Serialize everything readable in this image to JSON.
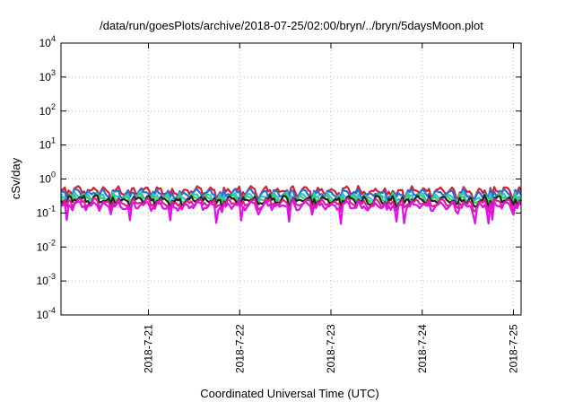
{
  "chart_data": {
    "type": "line",
    "title": "/data/run/goesPlots/archive/2018-07-25/02:00/bryn/../bryn/5daysMoon.plot",
    "xlabel": "Coordinated Universal Time (UTC)",
    "ylabel": "cSv/day",
    "yscale": "log",
    "ylim": [
      0.0001,
      10000
    ],
    "y_ticks": [
      {
        "base": "10",
        "exp": "-4",
        "value": 0.0001
      },
      {
        "base": "10",
        "exp": "-3",
        "value": 0.001
      },
      {
        "base": "10",
        "exp": "-2",
        "value": 0.01
      },
      {
        "base": "10",
        "exp": "-1",
        "value": 0.1
      },
      {
        "base": "10",
        "exp": "0",
        "value": 1
      },
      {
        "base": "10",
        "exp": "1",
        "value": 10
      },
      {
        "base": "10",
        "exp": "2",
        "value": 100
      },
      {
        "base": "10",
        "exp": "3",
        "value": 1000
      },
      {
        "base": "10",
        "exp": "4",
        "value": 10000
      }
    ],
    "xlim": [
      "2018-07-20T01:00",
      "2018-07-25T02:00"
    ],
    "x_ticks": [
      {
        "label": "2018-7-21",
        "date": "2018-07-21T00:00"
      },
      {
        "label": "2018-7-22",
        "date": "2018-07-22T00:00"
      },
      {
        "label": "2018-7-23",
        "date": "2018-07-23T00:00"
      },
      {
        "label": "2018-7-24",
        "date": "2018-07-24T00:00"
      },
      {
        "label": "2018-7-25",
        "date": "2018-07-25T00:00"
      }
    ],
    "grid": true,
    "legend": "none",
    "series": [
      {
        "color": "#d6202a",
        "baseline": 0.5
      },
      {
        "color": "#2a6fd8",
        "baseline": 0.42
      },
      {
        "color": "#2ec4d4",
        "baseline": 0.33
      },
      {
        "color": "#3cd05a",
        "baseline": 0.3
      },
      {
        "color": "#222222",
        "baseline": 0.27
      },
      {
        "color": "#e0208a",
        "baseline": 0.22
      },
      {
        "color": "#e010e8",
        "baseline": 0.18
      }
    ]
  }
}
